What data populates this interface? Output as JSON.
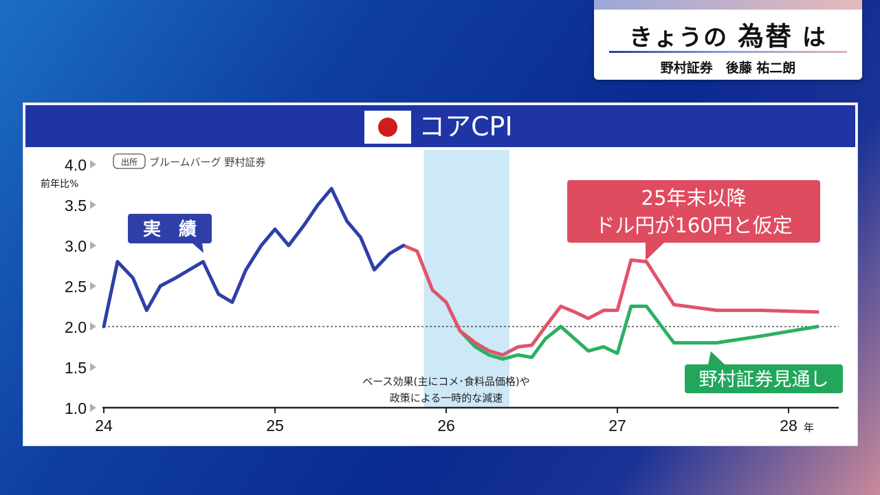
{
  "header": {
    "title_prefix": "きょうの",
    "title_main": "為替",
    "title_suffix": "は",
    "guest": "野村証券　後藤 祐二朗"
  },
  "panel": {
    "title": "コアCPI",
    "flag_icon": "japan-flag-icon"
  },
  "colors": {
    "actual": "#2f3fa8",
    "forecast_160": "#e0546a",
    "forecast_nomura": "#2bb061",
    "highlight_band": "#cde8f7",
    "label_actual_bg": "#2f3fa8",
    "label_160_bg": "#df4b5f",
    "label_nomura_bg": "#21a65c"
  },
  "chart_data": {
    "type": "line",
    "source": "ブルームバーグ 野村証券",
    "source_tag": "出所",
    "ylabel": "前年比%",
    "xunit": "年",
    "ylim": [
      1.0,
      4.0
    ],
    "yticks": [
      "4.0",
      "3.5",
      "3.0",
      "2.5",
      "2.0",
      "1.5",
      "1.0"
    ],
    "xticks": [
      "24",
      "25",
      "26",
      "27",
      "28"
    ],
    "reference_line": 2.0,
    "highlight": {
      "x_start": 25.87,
      "x_end": 26.37,
      "label_lines": [
        "ベース効果(主にコメ･食料品価格)や",
        "政策による一時的な減速"
      ]
    },
    "series": [
      {
        "name": "実　績",
        "x": [
          24.0,
          24.08,
          24.17,
          24.25,
          24.33,
          24.42,
          24.5,
          24.58,
          24.67,
          24.75,
          24.83,
          24.92,
          25.0,
          25.08,
          25.17,
          25.25,
          25.33,
          25.42,
          25.5,
          25.58,
          25.67,
          25.75
        ],
        "values": [
          2.0,
          2.8,
          2.6,
          2.2,
          2.5,
          2.6,
          2.7,
          2.8,
          2.4,
          2.3,
          2.7,
          3.0,
          3.2,
          3.0,
          3.25,
          3.5,
          3.7,
          3.3,
          3.1,
          2.7,
          2.9,
          3.0
        ]
      },
      {
        "name": "25年末以降 ドル円が160円と仮定",
        "x": [
          25.75,
          25.83,
          25.92,
          26.0,
          26.08,
          26.17,
          26.25,
          26.33,
          26.42,
          26.5,
          26.58,
          26.67,
          26.75,
          26.83,
          26.92,
          27.0,
          27.08,
          27.17,
          27.33,
          27.58,
          27.83,
          28.17
        ],
        "values": [
          3.0,
          2.93,
          2.45,
          2.3,
          1.95,
          1.8,
          1.7,
          1.65,
          1.75,
          1.77,
          2.0,
          2.25,
          2.18,
          2.1,
          2.2,
          2.2,
          2.82,
          2.8,
          2.27,
          2.2,
          2.2,
          2.18
        ]
      },
      {
        "name": "野村証券見通し",
        "x": [
          26.08,
          26.17,
          26.25,
          26.33,
          26.42,
          26.5,
          26.58,
          26.67,
          26.75,
          26.83,
          26.92,
          27.0,
          27.08,
          27.17,
          27.33,
          27.58,
          27.83,
          28.17
        ],
        "values": [
          1.95,
          1.75,
          1.65,
          1.6,
          1.65,
          1.62,
          1.85,
          2.0,
          1.85,
          1.7,
          1.75,
          1.67,
          2.25,
          2.25,
          1.8,
          1.8,
          1.88,
          2.0
        ]
      }
    ]
  }
}
